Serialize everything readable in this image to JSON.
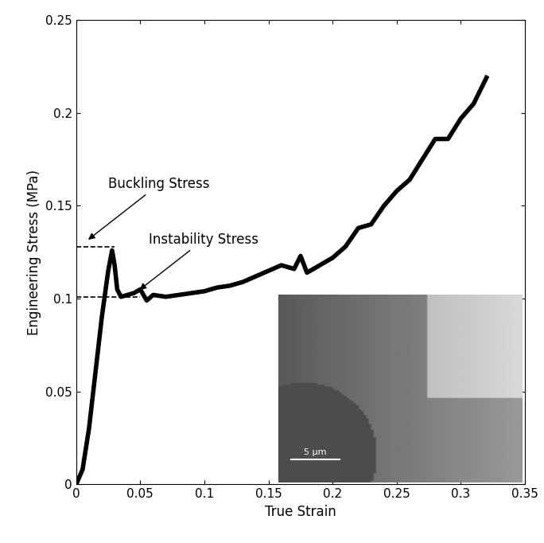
{
  "chart_data": {
    "type": "line",
    "x_label": "True Strain",
    "y_label": "Engineering Stress (MPa)",
    "x": [
      0,
      0.005,
      0.01,
      0.015,
      0.02,
      0.025,
      0.028,
      0.03,
      0.032,
      0.035,
      0.04,
      0.045,
      0.05,
      0.055,
      0.06,
      0.07,
      0.08,
      0.09,
      0.1,
      0.11,
      0.12,
      0.13,
      0.14,
      0.15,
      0.16,
      0.17,
      0.175,
      0.18,
      0.19,
      0.2,
      0.21,
      0.22,
      0.23,
      0.24,
      0.25,
      0.26,
      0.27,
      0.28,
      0.29,
      0.3,
      0.31,
      0.32
    ],
    "values": [
      0,
      0.008,
      0.03,
      0.06,
      0.09,
      0.115,
      0.126,
      0.118,
      0.105,
      0.101,
      0.102,
      0.103,
      0.105,
      0.099,
      0.102,
      0.101,
      0.102,
      0.103,
      0.104,
      0.106,
      0.107,
      0.109,
      0.112,
      0.115,
      0.118,
      0.116,
      0.123,
      0.114,
      0.118,
      0.122,
      0.128,
      0.138,
      0.14,
      0.15,
      0.158,
      0.164,
      0.175,
      0.186,
      0.186,
      0.197,
      0.205,
      0.219
    ],
    "color": "#000000",
    "xlim": [
      0,
      0.35
    ],
    "xticks": [
      0,
      0.05,
      0.1,
      0.15,
      0.2,
      0.25,
      0.3,
      0.35
    ],
    "ylim": [
      0,
      0.25
    ],
    "yticks": [
      0,
      0.05,
      0.1,
      0.15,
      0.2,
      0.25
    ],
    "grid": false,
    "reference_lines": [
      {
        "name": "Buckling Stress",
        "y": 0.128,
        "x_end": 0.03,
        "arrow_x": 0.008
      },
      {
        "name": "Instability Stress",
        "y": 0.101,
        "x_end": 0.05,
        "arrow_x": 0.048
      }
    ],
    "inset": {
      "scale_bar": "5 μm"
    }
  }
}
